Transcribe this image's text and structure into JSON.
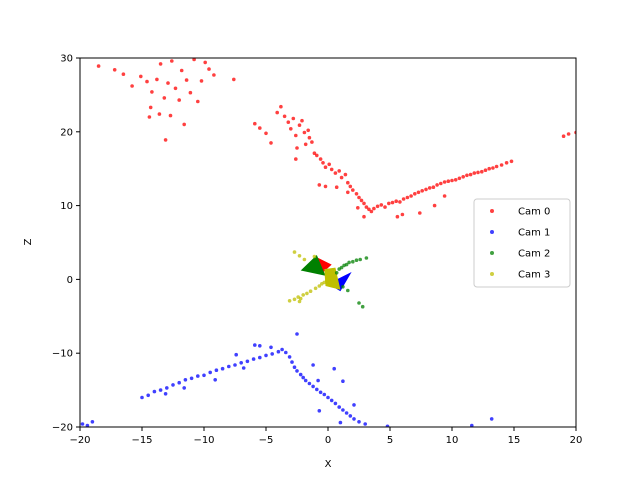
{
  "chart_data": {
    "type": "scatter",
    "title": "",
    "xlabel": "X",
    "ylabel": "Z",
    "xlim": [
      -20,
      20
    ],
    "ylim": [
      -20,
      30
    ],
    "xticks": [
      -20,
      -15,
      -10,
      -5,
      0,
      5,
      10,
      15,
      20
    ],
    "yticks": [
      -20,
      -10,
      0,
      10,
      20,
      30
    ],
    "grid": false,
    "legend_position": "center-right",
    "series": [
      {
        "name": "Cam 0",
        "color": "#ff0000",
        "points": [
          [
            -18.5,
            28.9
          ],
          [
            -17.2,
            28.4
          ],
          [
            -16.5,
            27.8
          ],
          [
            -15.8,
            26.2
          ],
          [
            -15.1,
            27.5
          ],
          [
            -14.6,
            26.8
          ],
          [
            -14.2,
            25.4
          ],
          [
            -13.8,
            27.1
          ],
          [
            -13.5,
            29.2
          ],
          [
            -13.2,
            24.6
          ],
          [
            -12.9,
            26.6
          ],
          [
            -12.6,
            29.6
          ],
          [
            -12.3,
            25.9
          ],
          [
            -12.0,
            24.3
          ],
          [
            -11.8,
            28.3
          ],
          [
            -11.4,
            27.0
          ],
          [
            -11.1,
            25.3
          ],
          [
            -10.8,
            29.8
          ],
          [
            -10.5,
            24.1
          ],
          [
            -10.2,
            26.9
          ],
          [
            -9.9,
            29.4
          ],
          [
            -9.6,
            28.5
          ],
          [
            -9.2,
            27.7
          ],
          [
            -14.4,
            22.0
          ],
          [
            -13.6,
            22.4
          ],
          [
            -12.7,
            22.2
          ],
          [
            -11.6,
            21.0
          ],
          [
            -14.3,
            23.3
          ],
          [
            -13.1,
            18.9
          ],
          [
            -7.6,
            27.1
          ],
          [
            -5.9,
            21.1
          ],
          [
            -5.5,
            20.5
          ],
          [
            -5.0,
            19.8
          ],
          [
            -4.6,
            18.5
          ],
          [
            -4.1,
            22.6
          ],
          [
            -3.8,
            23.4
          ],
          [
            -3.5,
            22.1
          ],
          [
            -3.2,
            21.3
          ],
          [
            -3.0,
            20.4
          ],
          [
            -2.8,
            21.8
          ],
          [
            -2.6,
            19.5
          ],
          [
            -2.5,
            17.8
          ],
          [
            -2.3,
            20.9
          ],
          [
            -2.1,
            21.5
          ],
          [
            -1.9,
            19.9
          ],
          [
            -1.8,
            18.3
          ],
          [
            -1.6,
            20.2
          ],
          [
            -1.5,
            19.2
          ],
          [
            -1.3,
            18.6
          ],
          [
            -1.1,
            17.1
          ],
          [
            -0.9,
            16.8
          ],
          [
            -0.6,
            16.3
          ],
          [
            -0.4,
            15.8
          ],
          [
            -0.2,
            15.2
          ],
          [
            0.1,
            15.6
          ],
          [
            0.3,
            14.9
          ],
          [
            0.6,
            14.4
          ],
          [
            0.9,
            14.7
          ],
          [
            1.1,
            13.8
          ],
          [
            1.4,
            14.2
          ],
          [
            1.6,
            13.1
          ],
          [
            1.8,
            12.6
          ],
          [
            2.0,
            12.1
          ],
          [
            2.3,
            11.6
          ],
          [
            2.5,
            11.1
          ],
          [
            2.7,
            10.7
          ],
          [
            2.9,
            10.3
          ],
          [
            3.1,
            9.8
          ],
          [
            3.3,
            9.5
          ],
          [
            3.5,
            9.2
          ],
          [
            -0.7,
            12.8
          ],
          [
            -0.2,
            12.6
          ],
          [
            0.7,
            12.5
          ],
          [
            1.6,
            11.8
          ],
          [
            2.4,
            9.7
          ],
          [
            -2.6,
            16.3
          ],
          [
            3.7,
            9.6
          ],
          [
            4.0,
            9.9
          ],
          [
            4.3,
            10.1
          ],
          [
            4.6,
            9.8
          ],
          [
            4.9,
            10.3
          ],
          [
            5.2,
            10.4
          ],
          [
            5.5,
            10.6
          ],
          [
            5.8,
            10.5
          ],
          [
            6.1,
            10.9
          ],
          [
            6.4,
            11.1
          ],
          [
            6.7,
            11.3
          ],
          [
            7.0,
            11.6
          ],
          [
            7.3,
            11.8
          ],
          [
            7.6,
            12.0
          ],
          [
            7.9,
            12.2
          ],
          [
            8.2,
            12.4
          ],
          [
            8.5,
            12.5
          ],
          [
            8.8,
            12.8
          ],
          [
            9.1,
            13.0
          ],
          [
            9.4,
            13.2
          ],
          [
            9.7,
            13.3
          ],
          [
            10.0,
            13.4
          ],
          [
            10.3,
            13.5
          ],
          [
            10.6,
            13.7
          ],
          [
            10.9,
            13.9
          ],
          [
            11.2,
            14.1
          ],
          [
            11.5,
            14.2
          ],
          [
            11.8,
            14.4
          ],
          [
            12.1,
            14.5
          ],
          [
            12.4,
            14.6
          ],
          [
            12.7,
            14.8
          ],
          [
            13.0,
            15.0
          ],
          [
            13.3,
            15.1
          ],
          [
            13.6,
            15.3
          ],
          [
            14.0,
            15.5
          ],
          [
            14.4,
            15.8
          ],
          [
            14.8,
            16.0
          ],
          [
            6.0,
            8.8
          ],
          [
            7.4,
            9.0
          ],
          [
            8.6,
            10.0
          ],
          [
            9.4,
            11.3
          ],
          [
            5.6,
            8.5
          ],
          [
            19.0,
            19.4
          ],
          [
            19.4,
            19.7
          ],
          [
            20.0,
            19.9
          ],
          [
            2.9,
            8.5
          ]
        ]
      },
      {
        "name": "Cam 1",
        "color": "#0000ff",
        "points": [
          [
            -19.8,
            -19.6
          ],
          [
            -19.4,
            -19.8
          ],
          [
            -19.0,
            -19.3
          ],
          [
            -15.0,
            -16.0
          ],
          [
            -14.5,
            -15.7
          ],
          [
            -14.0,
            -15.2
          ],
          [
            -13.5,
            -15.0
          ],
          [
            -13.0,
            -14.7
          ],
          [
            -12.5,
            -14.3
          ],
          [
            -12.0,
            -14.0
          ],
          [
            -11.5,
            -13.6
          ],
          [
            -11.0,
            -13.4
          ],
          [
            -10.5,
            -13.1
          ],
          [
            -10.0,
            -13.0
          ],
          [
            -9.5,
            -12.6
          ],
          [
            -9.0,
            -12.3
          ],
          [
            -8.5,
            -12.1
          ],
          [
            -8.0,
            -11.8
          ],
          [
            -7.5,
            -11.6
          ],
          [
            -7.0,
            -11.3
          ],
          [
            -6.5,
            -11.1
          ],
          [
            -6.0,
            -10.8
          ],
          [
            -5.5,
            -10.6
          ],
          [
            -5.0,
            -10.3
          ],
          [
            -4.5,
            -10.1
          ],
          [
            -4.0,
            -9.8
          ],
          [
            -3.7,
            -9.5
          ],
          [
            -3.4,
            -9.9
          ],
          [
            -3.1,
            -10.5
          ],
          [
            -2.9,
            -11.2
          ],
          [
            -2.7,
            -11.9
          ],
          [
            -2.5,
            -12.4
          ],
          [
            -2.2,
            -12.9
          ],
          [
            -2.0,
            -13.3
          ],
          [
            -1.8,
            -13.7
          ],
          [
            -1.5,
            -14.1
          ],
          [
            -1.2,
            -14.5
          ],
          [
            -0.9,
            -14.9
          ],
          [
            -0.6,
            -15.3
          ],
          [
            -0.3,
            -15.6
          ],
          [
            0.0,
            -16.0
          ],
          [
            0.3,
            -16.4
          ],
          [
            0.6,
            -16.8
          ],
          [
            0.9,
            -17.3
          ],
          [
            1.2,
            -17.7
          ],
          [
            1.5,
            -18.1
          ],
          [
            1.8,
            -18.5
          ],
          [
            2.1,
            -18.9
          ],
          [
            2.5,
            -19.3
          ],
          [
            3.0,
            -19.6
          ],
          [
            -9.1,
            -13.6
          ],
          [
            -7.4,
            -10.2
          ],
          [
            -5.9,
            -8.9
          ],
          [
            -5.5,
            -9.0
          ],
          [
            -4.6,
            -9.2
          ],
          [
            -2.5,
            -7.4
          ],
          [
            -1.2,
            -11.6
          ],
          [
            -0.8,
            -13.7
          ],
          [
            0.5,
            -12.1
          ],
          [
            1.2,
            -13.8
          ],
          [
            -0.7,
            -17.8
          ],
          [
            1.0,
            -19.4
          ],
          [
            2.1,
            -17.0
          ],
          [
            4.8,
            -19.9
          ],
          [
            11.6,
            -19.8
          ],
          [
            13.2,
            -18.9
          ],
          [
            -11.6,
            -14.7
          ],
          [
            -13.1,
            -15.5
          ],
          [
            -6.8,
            -12.0
          ]
        ]
      },
      {
        "name": "Cam 2",
        "color": "#008000",
        "points": [
          [
            0.7,
            0.9
          ],
          [
            0.9,
            1.4
          ],
          [
            1.1,
            1.6
          ],
          [
            1.3,
            1.9
          ],
          [
            1.5,
            2.0
          ],
          [
            1.7,
            2.3
          ],
          [
            2.0,
            2.4
          ],
          [
            2.3,
            2.6
          ],
          [
            2.6,
            2.7
          ],
          [
            3.1,
            2.9
          ],
          [
            2.5,
            -3.2
          ],
          [
            2.8,
            -3.7
          ],
          [
            1.6,
            -1.5
          ],
          [
            1.2,
            -1.0
          ]
        ]
      },
      {
        "name": "Cam 3",
        "color": "#bfbf00",
        "points": [
          [
            -2.7,
            3.7
          ],
          [
            -2.3,
            3.2
          ],
          [
            -1.9,
            2.7
          ],
          [
            -1.4,
            -1.6
          ],
          [
            -1.0,
            -1.2
          ],
          [
            -0.7,
            -0.9
          ],
          [
            -0.5,
            -0.6
          ],
          [
            -0.3,
            -0.4
          ],
          [
            -0.1,
            -0.2
          ],
          [
            0.1,
            0.0
          ],
          [
            0.2,
            0.2
          ],
          [
            0.4,
            0.5
          ],
          [
            -1.7,
            -1.9
          ],
          [
            -2.0,
            -2.1
          ],
          [
            -2.4,
            -2.4
          ],
          [
            -2.7,
            -2.7
          ],
          [
            -3.1,
            -2.9
          ],
          [
            -2.3,
            -3.0
          ],
          [
            -2.2,
            -2.6
          ],
          [
            -1.1,
            3.1
          ]
        ]
      }
    ],
    "camera_markers": [
      {
        "name": "cam0-marker",
        "color": "#ff0000",
        "points": [
          [
            -0.9,
            3.0
          ],
          [
            0.3,
            2.0
          ],
          [
            -0.5,
            0.8
          ]
        ]
      },
      {
        "name": "cam1-marker",
        "color": "#0000ff",
        "points": [
          [
            0.0,
            -0.6
          ],
          [
            1.9,
            1.0
          ],
          [
            1.0,
            -1.6
          ]
        ]
      },
      {
        "name": "cam2-marker",
        "color": "#008000",
        "points": [
          [
            -2.2,
            1.2
          ],
          [
            -0.9,
            3.3
          ],
          [
            -0.2,
            0.5
          ]
        ]
      },
      {
        "name": "cam3-marker",
        "color": "#bfbf00",
        "points": [
          [
            -0.3,
            1.4
          ],
          [
            0.6,
            1.6
          ],
          [
            1.0,
            -1.4
          ],
          [
            -0.2,
            -0.9
          ]
        ]
      }
    ]
  }
}
